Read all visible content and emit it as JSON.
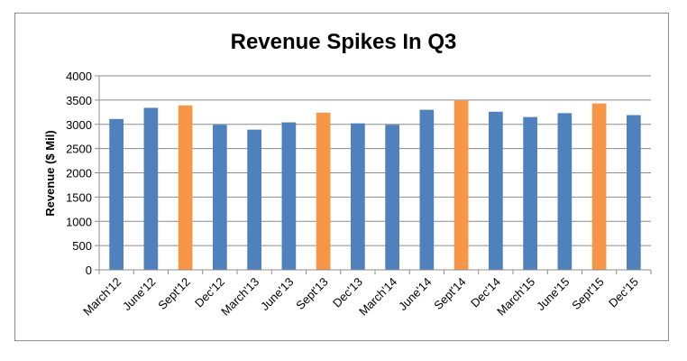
{
  "chart_data": {
    "type": "bar",
    "title": "Revenue Spikes  In Q3",
    "ylabel": "Revenue ($ Mil)",
    "xlabel": "",
    "ylim": [
      0,
      4000
    ],
    "yticks": [
      "0",
      "500",
      "1000",
      "1500",
      "2000",
      "2500",
      "3000",
      "3500",
      "4000"
    ],
    "grid": true,
    "legend": "none",
    "categories": [
      "March'12",
      "June'12",
      "Sept'12",
      "Dec'12",
      "March'13",
      "June'13",
      "Sept'13",
      "Dec'13",
      "March'14",
      "June'14",
      "Sept'14",
      "Dec'14",
      "March'15",
      "June'15",
      "Sept'15",
      "Dec'15"
    ],
    "values": [
      3110,
      3340,
      3390,
      2990,
      2890,
      3040,
      3240,
      3020,
      2990,
      3300,
      3490,
      3260,
      3150,
      3230,
      3430,
      3190
    ],
    "colors": {
      "default": "#4f81bd",
      "highlight": "#f79646",
      "grid": "#8c8c8c",
      "axis": "#8c8c8c"
    },
    "highlighted_categories": [
      "Sept'12",
      "Sept'13",
      "Sept'14",
      "Sept'15"
    ]
  }
}
